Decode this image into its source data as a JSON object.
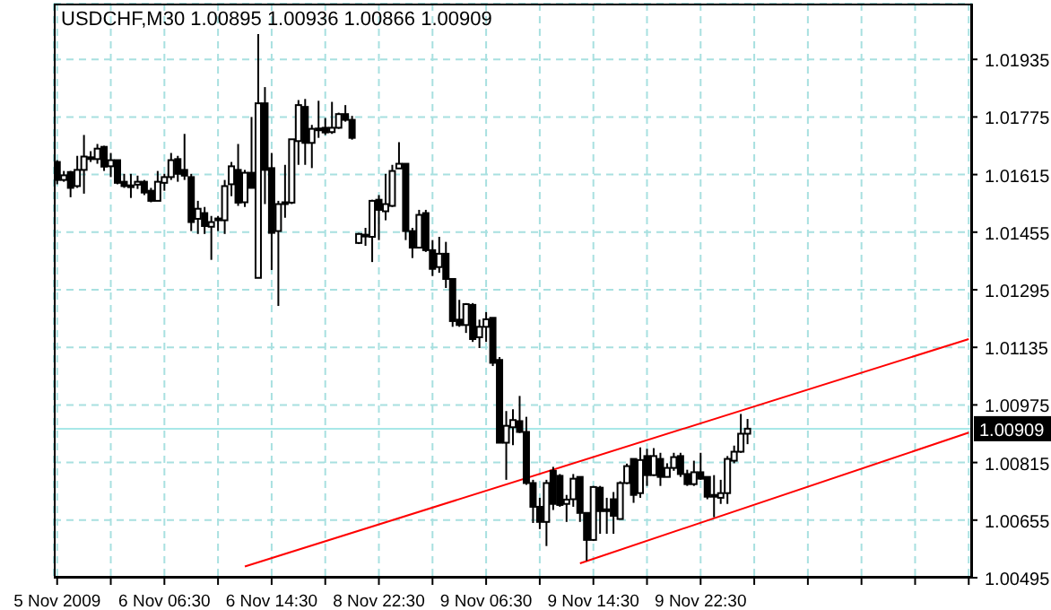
{
  "chart_data": {
    "type": "candlestick",
    "title": "USDCHF,M30 1.00895 1.00936 1.00866 1.00909",
    "categories": [
      "5 Nov 2009",
      null,
      null,
      null,
      null,
      null,
      null,
      null,
      null,
      null,
      null,
      null,
      null,
      null,
      null,
      null,
      "6 Nov 06:30",
      null,
      null,
      null,
      null,
      null,
      null,
      null,
      null,
      null,
      null,
      null,
      null,
      null,
      null,
      null,
      "6 Nov 14:30",
      null,
      null,
      null,
      null,
      null,
      null,
      null,
      null,
      null,
      null,
      null,
      null,
      null,
      null,
      null,
      "8 Nov 22:30",
      null,
      null,
      null,
      null,
      null,
      null,
      null,
      null,
      null,
      null,
      null,
      null,
      null,
      null,
      null,
      "9 Nov 06:30",
      null,
      null,
      null,
      null,
      null,
      null,
      null,
      null,
      null,
      null,
      null,
      null,
      null,
      null,
      null,
      "9 Nov 14:30",
      null,
      null,
      null,
      null,
      null,
      null,
      null,
      null,
      null,
      null,
      null,
      null,
      null,
      null,
      null,
      "9 Nov 22:30",
      null,
      null,
      null,
      null,
      null,
      null,
      null,
      null,
      null,
      null,
      null,
      null,
      null,
      null,
      null,
      null,
      null,
      null,
      null,
      null,
      null,
      null,
      null,
      null,
      null,
      null,
      null,
      null,
      null,
      null,
      null,
      null,
      null,
      null,
      null,
      null,
      null,
      null,
      null,
      null
    ],
    "ohlc": [
      [
        1.0165,
        1.01655,
        1.01588,
        1.016
      ],
      [
        1.016,
        1.01625,
        1.01595,
        1.01613
      ],
      [
        1.01622,
        1.01625,
        1.01552,
        1.01578
      ],
      [
        1.01583,
        1.01667,
        1.01578,
        1.01628
      ],
      [
        1.01628,
        1.01725,
        1.01562,
        1.01665
      ],
      [
        1.0166,
        1.0168,
        1.0165,
        1.01663
      ],
      [
        1.01658,
        1.017,
        1.01645,
        1.01687
      ],
      [
        1.01692,
        1.01695,
        1.01625,
        1.01637
      ],
      [
        1.01638,
        1.01675,
        1.01608,
        1.01655
      ],
      [
        1.01655,
        1.01655,
        1.01588,
        1.01592
      ],
      [
        1.01595,
        1.01617,
        1.01578,
        1.01583
      ],
      [
        1.01585,
        1.01617,
        1.0155,
        1.01583
      ],
      [
        1.01587,
        1.01612,
        1.01575,
        1.01595
      ],
      [
        1.01595,
        1.016,
        1.01558,
        1.01565
      ],
      [
        1.0157,
        1.01578,
        1.01538,
        1.01542
      ],
      [
        1.01542,
        1.01625,
        1.01542,
        1.01595
      ],
      [
        1.01592,
        1.01617,
        1.0157,
        1.01608
      ],
      [
        1.01608,
        1.01675,
        1.016,
        1.01655
      ],
      [
        1.01658,
        1.01667,
        1.01595,
        1.01617
      ],
      [
        1.01628,
        1.01728,
        1.016,
        1.01612
      ],
      [
        1.01608,
        1.01617,
        1.01458,
        1.01483
      ],
      [
        1.01492,
        1.01542,
        1.0145,
        1.0152
      ],
      [
        1.01508,
        1.01525,
        1.0145,
        1.01472
      ],
      [
        1.0147,
        1.015,
        1.01378,
        1.01483
      ],
      [
        1.0149,
        1.015,
        1.01458,
        1.01493
      ],
      [
        1.01488,
        1.016,
        1.0145,
        1.01583
      ],
      [
        1.01588,
        1.0165,
        1.01555,
        1.01638
      ],
      [
        1.01628,
        1.017,
        1.01528,
        1.01537
      ],
      [
        1.01538,
        1.01628,
        1.01525,
        1.0162
      ],
      [
        1.0162,
        1.01775,
        1.01578,
        1.01578
      ],
      [
        1.01328,
        1.02005,
        1.01328,
        1.01813
      ],
      [
        1.01813,
        1.01858,
        1.01533,
        1.01628
      ],
      [
        1.01633,
        1.01675,
        1.0135,
        1.01453
      ],
      [
        1.01458,
        1.01542,
        1.0125,
        1.01533
      ],
      [
        1.01538,
        1.01642,
        1.01495,
        1.01533
      ],
      [
        1.01537,
        1.01713,
        1.01533,
        1.01713
      ],
      [
        1.01708,
        1.01822,
        1.01642,
        1.01808
      ],
      [
        1.01803,
        1.01825,
        1.01642,
        1.01703
      ],
      [
        1.01703,
        1.01753,
        1.01633,
        1.01742
      ],
      [
        1.0174,
        1.0182,
        1.01717,
        1.01743
      ],
      [
        1.01745,
        1.01772,
        1.01725,
        1.01732
      ],
      [
        1.01733,
        1.01817,
        1.01728,
        1.01745
      ],
      [
        1.01745,
        1.01787,
        1.01742,
        1.01783
      ],
      [
        1.01783,
        1.01808,
        1.01762,
        1.01767
      ],
      [
        1.01767,
        1.01778,
        1.01712,
        1.01717
      ],
      [
        1.01425,
        1.01453,
        1.01422,
        1.0145
      ],
      [
        1.01445,
        1.01467,
        1.01417,
        1.01448
      ],
      [
        1.01442,
        1.01545,
        1.01372,
        1.01542
      ],
      [
        1.01545,
        1.01558,
        1.01433,
        1.01517
      ],
      [
        1.01513,
        1.01617,
        1.01488,
        1.01533
      ],
      [
        1.01528,
        1.01642,
        1.01525,
        1.01625
      ],
      [
        1.01632,
        1.01705,
        1.01632,
        1.01645
      ],
      [
        1.01645,
        1.01645,
        1.01433,
        1.01458
      ],
      [
        1.01458,
        1.01467,
        1.01383,
        1.01412
      ],
      [
        1.01412,
        1.01517,
        1.01412,
        1.01503
      ],
      [
        1.01508,
        1.01517,
        1.014,
        1.01405
      ],
      [
        1.01405,
        1.01433,
        1.01333,
        1.01353
      ],
      [
        1.01358,
        1.01442,
        1.01342,
        1.01395
      ],
      [
        1.01395,
        1.01428,
        1.013,
        1.01325
      ],
      [
        1.01325,
        1.01325,
        1.01192,
        1.01208
      ],
      [
        1.01212,
        1.01267,
        1.01192,
        1.01197
      ],
      [
        1.01197,
        1.01258,
        1.01175,
        1.01255
      ],
      [
        1.01253,
        1.01258,
        1.0115,
        1.01158
      ],
      [
        1.01163,
        1.01212,
        1.01133,
        1.01192
      ],
      [
        1.01192,
        1.01233,
        1.0115,
        1.01213
      ],
      [
        1.01217,
        1.01217,
        1.01083,
        1.01092
      ],
      [
        1.011,
        1.01108,
        1.0087,
        1.0087
      ],
      [
        1.0087,
        1.00958,
        1.00767,
        1.00917
      ],
      [
        1.00913,
        1.00963,
        1.00863,
        1.00933
      ],
      [
        1.0093,
        1.01,
        1.00897,
        1.009
      ],
      [
        1.009,
        1.00942,
        1.00753,
        1.00758
      ],
      [
        1.00758,
        1.00767,
        1.00647,
        1.00692
      ],
      [
        1.00692,
        1.00717,
        1.0063,
        1.0065
      ],
      [
        1.0065,
        1.00767,
        1.00583,
        1.00758
      ],
      [
        1.00792,
        1.00803,
        1.00683,
        1.007
      ],
      [
        1.00778,
        1.00783,
        1.00692,
        1.00697
      ],
      [
        1.007,
        1.00725,
        1.0065,
        1.00712
      ],
      [
        1.00713,
        1.00783,
        1.00692,
        1.0077
      ],
      [
        1.00775,
        1.00775,
        1.0065,
        1.00675
      ],
      [
        1.00675,
        1.00675,
        1.00542,
        1.006
      ],
      [
        1.006,
        1.0075,
        1.00597,
        1.00747
      ],
      [
        1.00745,
        1.0075,
        1.00617,
        1.0068
      ],
      [
        1.00682,
        1.00717,
        1.00617,
        1.00685
      ],
      [
        1.00713,
        1.00733,
        1.00617,
        1.00667
      ],
      [
        1.00658,
        1.00763,
        1.00658,
        1.00758
      ],
      [
        1.00758,
        1.00812,
        1.00755,
        1.00805
      ],
      [
        1.00825,
        1.00825,
        1.00703,
        1.00725
      ],
      [
        1.0073,
        1.00857,
        1.00717,
        1.00822
      ],
      [
        1.00833,
        1.00853,
        1.0075,
        1.0078
      ],
      [
        1.0078,
        1.00855,
        1.00778,
        1.00833
      ],
      [
        1.00825,
        1.00842,
        1.0075,
        1.00775
      ],
      [
        1.00775,
        1.00813,
        1.00775,
        1.008
      ],
      [
        1.008,
        1.00842,
        1.00792,
        1.0083
      ],
      [
        1.00833,
        1.00842,
        1.00775,
        1.00783
      ],
      [
        1.00783,
        1.00795,
        1.0075,
        1.00755
      ],
      [
        1.00755,
        1.0082,
        1.0075,
        1.00788
      ],
      [
        1.00788,
        1.00842,
        1.00767,
        1.0077
      ],
      [
        1.00775,
        1.00775,
        1.00713,
        1.0072
      ],
      [
        1.00722,
        1.0078,
        1.00663,
        1.00725
      ],
      [
        1.00717,
        1.00767,
        1.007,
        1.0073
      ],
      [
        1.0073,
        1.00833,
        1.007,
        1.00825
      ],
      [
        1.0082,
        1.00862,
        1.00813,
        1.00845
      ],
      [
        1.00845,
        1.0095,
        1.00842,
        1.00895
      ],
      [
        1.00895,
        1.00936,
        1.00866,
        1.00909
      ],
      null,
      null,
      null,
      null,
      null,
      null,
      null,
      null,
      null,
      null,
      null,
      null,
      null,
      null,
      null,
      null,
      null,
      null,
      null,
      null,
      null,
      null,
      null,
      null,
      null,
      null,
      null,
      null,
      null,
      null,
      null,
      null,
      null
    ],
    "series": [
      {
        "type": "line",
        "color": "#ff0000",
        "values": [
          null,
          null,
          null,
          null,
          null,
          null,
          null,
          null,
          null,
          null,
          null,
          null,
          null,
          null,
          null,
          null,
          null,
          null,
          null,
          null,
          null,
          null,
          null,
          null,
          null,
          null,
          null,
          null,
          1.00526,
          null,
          null,
          null,
          null,
          null,
          null,
          null,
          null,
          null,
          null,
          null,
          null,
          null,
          null,
          null,
          null,
          null,
          null,
          null,
          null,
          null,
          null,
          null,
          null,
          null,
          null,
          null,
          null,
          null,
          null,
          null,
          null,
          null,
          null,
          null,
          null,
          null,
          null,
          null,
          null,
          null,
          null,
          null,
          null,
          null,
          null,
          null,
          null,
          null,
          null,
          null,
          null,
          null,
          null,
          null,
          null,
          null,
          null,
          null,
          null,
          null,
          null,
          null,
          null,
          null,
          null,
          null,
          null,
          null,
          null,
          null,
          null,
          null,
          null,
          null,
          null,
          null,
          null,
          null,
          null,
          null,
          null,
          null,
          null,
          null,
          null,
          null,
          null,
          null,
          null,
          null,
          null,
          null,
          null,
          null,
          null,
          null,
          null,
          null,
          null,
          null,
          null,
          null,
          null,
          null,
          null,
          null,
          1.01158
        ]
      },
      {
        "type": "line",
        "color": "#ff0000",
        "values": [
          null,
          null,
          null,
          null,
          null,
          null,
          null,
          null,
          null,
          null,
          null,
          null,
          null,
          null,
          null,
          null,
          null,
          null,
          null,
          null,
          null,
          null,
          null,
          null,
          null,
          null,
          null,
          null,
          null,
          null,
          null,
          null,
          null,
          null,
          null,
          null,
          null,
          null,
          null,
          null,
          null,
          null,
          null,
          null,
          null,
          null,
          null,
          null,
          null,
          null,
          null,
          null,
          null,
          null,
          null,
          null,
          null,
          null,
          null,
          null,
          null,
          null,
          null,
          null,
          null,
          null,
          null,
          null,
          null,
          null,
          null,
          null,
          null,
          null,
          null,
          null,
          null,
          null,
          1.00535,
          null,
          null,
          null,
          null,
          null,
          null,
          null,
          null,
          null,
          null,
          null,
          null,
          null,
          null,
          null,
          null,
          null,
          null,
          null,
          null,
          null,
          null,
          null,
          null,
          null,
          null,
          null,
          null,
          null,
          null,
          null,
          null,
          null,
          null,
          null,
          null,
          null,
          null,
          null,
          null,
          null,
          null,
          null,
          null,
          null,
          null,
          null,
          null,
          null,
          null,
          null,
          null,
          null,
          null,
          null,
          null,
          null,
          1.00898
        ]
      }
    ],
    "ref_lines": [
      {
        "axis": "y",
        "value": 1.00909,
        "label": "1.00909",
        "color": "#a8e8e8"
      }
    ],
    "ylim": [
      1.00495,
      1.0209
    ],
    "yticks": [
      1.00495,
      1.00655,
      1.00815,
      1.00975,
      1.01135,
      1.01295,
      1.01455,
      1.01615,
      1.01775,
      1.01935
    ],
    "grid": true
  }
}
